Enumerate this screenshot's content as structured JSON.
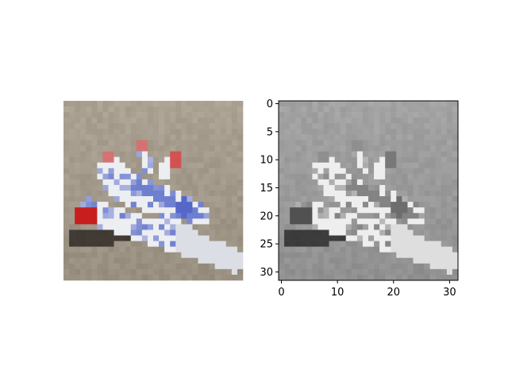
{
  "chart_data": [
    {
      "type": "heatmap",
      "kind": "image-panel",
      "color_mode": "rgb",
      "axes_visible": false,
      "image_resolution": [
        32,
        32
      ],
      "content": "pixelated color image of a jet fighter plane on a sandy beige background",
      "colors": {
        "background": "#a19889",
        "aircraft_body": "#eceef2",
        "aircraft_accent_blue": "#3a4fc0",
        "aircraft_accent_red": "#c81e1e",
        "shadow": "#2a2420"
      }
    },
    {
      "type": "heatmap",
      "kind": "image-panel",
      "color_mode": "grayscale",
      "axes_visible": true,
      "image_resolution": [
        32,
        32
      ],
      "xlim": [
        -0.5,
        31.5
      ],
      "ylim": [
        31.5,
        -0.5
      ],
      "x_ticks": [
        0,
        10,
        20,
        30
      ],
      "x_tick_labels": [
        "0",
        "10",
        "20",
        "30"
      ],
      "y_ticks": [
        0,
        5,
        10,
        15,
        20,
        25,
        30
      ],
      "y_tick_labels": [
        "0",
        "5",
        "10",
        "15",
        "20",
        "25",
        "30"
      ],
      "xlabel": "",
      "ylabel": "",
      "title": "",
      "grid": false,
      "legend": "none",
      "content": "grayscale version of the same jet fighter image"
    }
  ]
}
